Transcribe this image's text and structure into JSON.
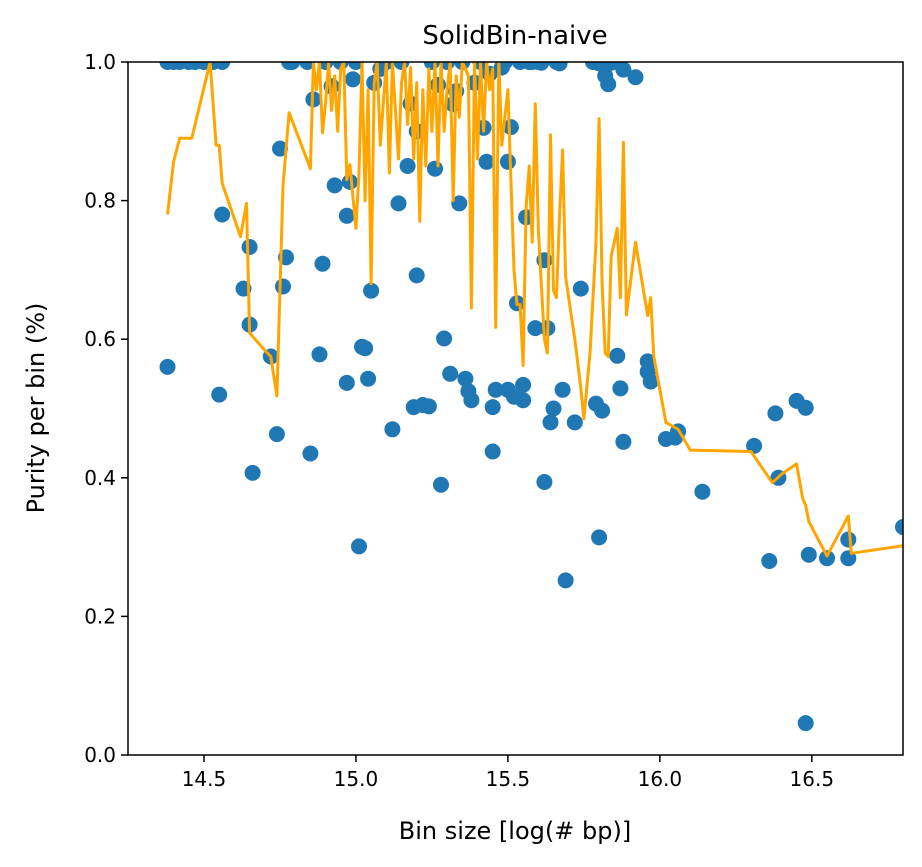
{
  "chart_data": {
    "type": "scatter",
    "title": "SolidBin-naive",
    "xlabel": "Bin size [log(# bp)]",
    "ylabel": "Purity per bin (%)",
    "xlim": [
      14.25,
      16.8
    ],
    "ylim": [
      0.0,
      1.0
    ],
    "xticks": [
      14.5,
      15.0,
      15.5,
      16.0,
      16.5
    ],
    "xtick_labels": [
      "14.5",
      "15.0",
      "15.5",
      "16.0",
      "16.5"
    ],
    "yticks": [
      0.0,
      0.2,
      0.4,
      0.6,
      0.8,
      1.0
    ],
    "ytick_labels": [
      "0.0",
      "0.2",
      "0.4",
      "0.6",
      "0.8",
      "1.0"
    ],
    "grid": false,
    "colors": {
      "scatter": "#1f77b4",
      "line": "#ffa500"
    },
    "series": [
      {
        "type": "scatter",
        "points": [
          [
            14.38,
            1.0
          ],
          [
            14.4,
            1.0
          ],
          [
            14.42,
            1.0
          ],
          [
            14.45,
            1.0
          ],
          [
            14.47,
            1.0
          ],
          [
            14.5,
            1.0
          ],
          [
            14.53,
            1.0
          ],
          [
            14.56,
            1.0
          ],
          [
            14.38,
            0.56
          ],
          [
            14.55,
            0.52
          ],
          [
            14.56,
            0.78
          ],
          [
            14.63,
            0.673
          ],
          [
            14.65,
            0.733
          ],
          [
            14.65,
            0.621
          ],
          [
            14.66,
            0.407
          ],
          [
            14.72,
            0.575
          ],
          [
            14.74,
            0.463
          ],
          [
            14.75,
            0.875
          ],
          [
            14.76,
            0.676
          ],
          [
            14.77,
            0.718
          ],
          [
            14.78,
            1.0
          ],
          [
            14.79,
            1.0
          ],
          [
            14.84,
            1.0
          ],
          [
            14.85,
            0.435
          ],
          [
            14.86,
            0.946
          ],
          [
            14.88,
            0.578
          ],
          [
            14.89,
            0.709
          ],
          [
            14.9,
            1.0
          ],
          [
            14.92,
            0.965
          ],
          [
            14.93,
            0.822
          ],
          [
            14.95,
            1.0
          ],
          [
            14.97,
            0.778
          ],
          [
            14.97,
            0.537
          ],
          [
            14.98,
            0.827
          ],
          [
            14.99,
            0.975
          ],
          [
            15.0,
            1.0
          ],
          [
            15.01,
            0.301
          ],
          [
            15.02,
            0.589
          ],
          [
            15.03,
            0.587
          ],
          [
            15.04,
            0.543
          ],
          [
            15.05,
            0.67
          ],
          [
            15.06,
            0.97
          ],
          [
            15.08,
            0.99
          ],
          [
            15.1,
            1.0
          ],
          [
            15.12,
            0.47
          ],
          [
            15.14,
            0.796
          ],
          [
            15.15,
            1.0
          ],
          [
            15.17,
            0.85
          ],
          [
            15.18,
            0.94
          ],
          [
            15.19,
            0.502
          ],
          [
            15.2,
            0.692
          ],
          [
            15.2,
            0.9
          ],
          [
            15.22,
            0.505
          ],
          [
            15.24,
            0.503
          ],
          [
            15.25,
            1.0
          ],
          [
            15.26,
            0.846
          ],
          [
            15.27,
            0.967
          ],
          [
            15.28,
            0.39
          ],
          [
            15.29,
            0.601
          ],
          [
            15.3,
            1.0
          ],
          [
            15.31,
            0.55
          ],
          [
            15.32,
            0.939
          ],
          [
            15.33,
            0.958
          ],
          [
            15.34,
            0.796
          ],
          [
            15.35,
            1.0
          ],
          [
            15.36,
            0.543
          ],
          [
            15.37,
            0.525
          ],
          [
            15.38,
            0.512
          ],
          [
            15.39,
            0.97
          ],
          [
            15.41,
            1.0
          ],
          [
            15.42,
            0.905
          ],
          [
            15.43,
            0.856
          ],
          [
            15.44,
            0.983
          ],
          [
            15.45,
            0.502
          ],
          [
            15.45,
            0.438
          ],
          [
            15.46,
            0.527
          ],
          [
            15.48,
            0.992
          ],
          [
            15.49,
            1.0
          ],
          [
            15.5,
            0.856
          ],
          [
            15.5,
            0.527
          ],
          [
            15.51,
            0.906
          ],
          [
            15.52,
            0.517
          ],
          [
            15.53,
            0.652
          ],
          [
            15.54,
            1.0
          ],
          [
            15.55,
            0.534
          ],
          [
            15.55,
            0.512
          ],
          [
            15.56,
            0.776
          ],
          [
            15.57,
            1.0
          ],
          [
            15.58,
            1.0
          ],
          [
            15.59,
            0.616
          ],
          [
            15.6,
            1.0
          ],
          [
            15.61,
            0.999
          ],
          [
            15.62,
            0.714
          ],
          [
            15.62,
            0.394
          ],
          [
            15.63,
            0.616
          ],
          [
            15.64,
            0.48
          ],
          [
            15.65,
            0.5
          ],
          [
            15.66,
            1.0
          ],
          [
            15.67,
            0.998
          ],
          [
            15.68,
            0.527
          ],
          [
            15.69,
            0.252
          ],
          [
            15.72,
            0.48
          ],
          [
            15.74,
            0.673
          ],
          [
            15.78,
            1.0
          ],
          [
            15.79,
            0.507
          ],
          [
            15.8,
            0.998
          ],
          [
            15.8,
            0.314
          ],
          [
            15.81,
            0.497
          ],
          [
            15.82,
            0.98
          ],
          [
            15.83,
            0.968
          ],
          [
            15.84,
            0.999
          ],
          [
            15.86,
            0.576
          ],
          [
            15.87,
            0.529
          ],
          [
            15.88,
            0.452
          ],
          [
            15.88,
            0.989
          ],
          [
            15.92,
            0.978
          ],
          [
            15.96,
            0.568
          ],
          [
            15.96,
            0.553
          ],
          [
            15.97,
            0.539
          ],
          [
            16.02,
            0.456
          ],
          [
            16.05,
            0.458
          ],
          [
            16.06,
            0.467
          ],
          [
            16.14,
            0.38
          ],
          [
            16.31,
            0.446
          ],
          [
            16.36,
            0.28
          ],
          [
            16.38,
            0.493
          ],
          [
            16.39,
            0.4
          ],
          [
            16.45,
            0.511
          ],
          [
            16.48,
            0.501
          ],
          [
            16.49,
            0.289
          ],
          [
            16.48,
            0.046
          ],
          [
            16.55,
            0.284
          ],
          [
            16.62,
            0.311
          ],
          [
            16.62,
            0.284
          ],
          [
            16.8,
            0.329
          ]
        ]
      },
      {
        "type": "line",
        "points": [
          [
            14.38,
            0.78
          ],
          [
            14.4,
            0.856
          ],
          [
            14.42,
            0.89
          ],
          [
            14.46,
            0.89
          ],
          [
            14.52,
            1.0
          ],
          [
            14.54,
            0.88
          ],
          [
            14.55,
            0.88
          ],
          [
            14.56,
            0.825
          ],
          [
            14.62,
            0.748
          ],
          [
            14.64,
            0.796
          ],
          [
            14.65,
            0.609
          ],
          [
            14.7,
            0.584
          ],
          [
            14.72,
            0.575
          ],
          [
            14.74,
            0.518
          ],
          [
            14.76,
            0.821
          ],
          [
            14.78,
            0.927
          ],
          [
            14.85,
            0.846
          ],
          [
            14.86,
            1.0
          ],
          [
            14.87,
            0.96
          ],
          [
            14.88,
            1.0
          ],
          [
            14.89,
            0.898
          ],
          [
            14.9,
            0.94
          ],
          [
            14.91,
            1.0
          ],
          [
            14.92,
            0.93
          ],
          [
            14.93,
            0.98
          ],
          [
            14.94,
            0.9
          ],
          [
            14.95,
            0.99
          ],
          [
            14.96,
            1.0
          ],
          [
            14.97,
            0.83
          ],
          [
            14.98,
            0.852
          ],
          [
            15.0,
            0.76
          ],
          [
            15.01,
            0.84
          ],
          [
            15.02,
            1.0
          ],
          [
            15.03,
            0.8
          ],
          [
            15.04,
            0.96
          ],
          [
            15.05,
            0.68
          ],
          [
            15.06,
            0.97
          ],
          [
            15.07,
            1.0
          ],
          [
            15.08,
            0.88
          ],
          [
            15.1,
            1.0
          ],
          [
            15.11,
            0.84
          ],
          [
            15.12,
            1.0
          ],
          [
            15.14,
            0.86
          ],
          [
            15.15,
            0.97
          ],
          [
            15.16,
            1.0
          ],
          [
            15.17,
            0.91
          ],
          [
            15.18,
            0.992
          ],
          [
            15.19,
            0.86
          ],
          [
            15.2,
            0.97
          ],
          [
            15.21,
            0.77
          ],
          [
            15.22,
            0.96
          ],
          [
            15.23,
            0.85
          ],
          [
            15.24,
            0.99
          ],
          [
            15.25,
            0.9
          ],
          [
            15.26,
            1.0
          ],
          [
            15.27,
            0.85
          ],
          [
            15.28,
            1.0
          ],
          [
            15.29,
            0.9
          ],
          [
            15.3,
            0.96
          ],
          [
            15.31,
            1.0
          ],
          [
            15.32,
            0.8
          ],
          [
            15.33,
            0.98
          ],
          [
            15.34,
            0.92
          ],
          [
            15.35,
            1.0
          ],
          [
            15.36,
            0.99
          ],
          [
            15.37,
            0.98
          ],
          [
            15.38,
            0.645
          ],
          [
            15.39,
            1.0
          ],
          [
            15.4,
            0.86
          ],
          [
            15.41,
            1.0
          ],
          [
            15.42,
            0.9
          ],
          [
            15.43,
            1.0
          ],
          [
            15.44,
            0.96
          ],
          [
            15.45,
            0.99
          ],
          [
            15.46,
            0.617
          ],
          [
            15.47,
            1.0
          ],
          [
            15.48,
            0.88
          ],
          [
            15.5,
            0.96
          ],
          [
            15.51,
            0.83
          ],
          [
            15.52,
            0.7
          ],
          [
            15.53,
            0.65
          ],
          [
            15.54,
            0.65
          ],
          [
            15.55,
            0.562
          ],
          [
            15.56,
            0.79
          ],
          [
            15.57,
            0.85
          ],
          [
            15.58,
            0.74
          ],
          [
            15.59,
            0.94
          ],
          [
            15.6,
            0.76
          ],
          [
            15.61,
            0.68
          ],
          [
            15.62,
            0.6
          ],
          [
            15.63,
            0.58
          ],
          [
            15.64,
            0.895
          ],
          [
            15.65,
            0.67
          ],
          [
            15.66,
            0.66
          ],
          [
            15.67,
            0.78
          ],
          [
            15.68,
            0.873
          ],
          [
            15.69,
            0.69
          ],
          [
            15.72,
            0.6
          ],
          [
            15.74,
            0.53
          ],
          [
            15.75,
            0.485
          ],
          [
            15.77,
            0.58
          ],
          [
            15.79,
            0.74
          ],
          [
            15.8,
            0.918
          ],
          [
            15.81,
            0.68
          ],
          [
            15.82,
            0.58
          ],
          [
            15.83,
            0.575
          ],
          [
            15.84,
            0.72
          ],
          [
            15.85,
            0.74
          ],
          [
            15.86,
            0.76
          ],
          [
            15.87,
            0.66
          ],
          [
            15.88,
            0.884
          ],
          [
            15.89,
            0.635
          ],
          [
            15.92,
            0.74
          ],
          [
            15.96,
            0.634
          ],
          [
            15.97,
            0.66
          ],
          [
            15.98,
            0.575
          ],
          [
            16.02,
            0.48
          ],
          [
            16.06,
            0.47
          ],
          [
            16.1,
            0.44
          ],
          [
            16.3,
            0.438
          ],
          [
            16.37,
            0.393
          ],
          [
            16.4,
            0.405
          ],
          [
            16.45,
            0.42
          ],
          [
            16.47,
            0.37
          ],
          [
            16.48,
            0.36
          ],
          [
            16.49,
            0.337
          ],
          [
            16.55,
            0.287
          ],
          [
            16.62,
            0.345
          ],
          [
            16.63,
            0.291
          ],
          [
            16.8,
            0.302
          ]
        ]
      }
    ]
  }
}
